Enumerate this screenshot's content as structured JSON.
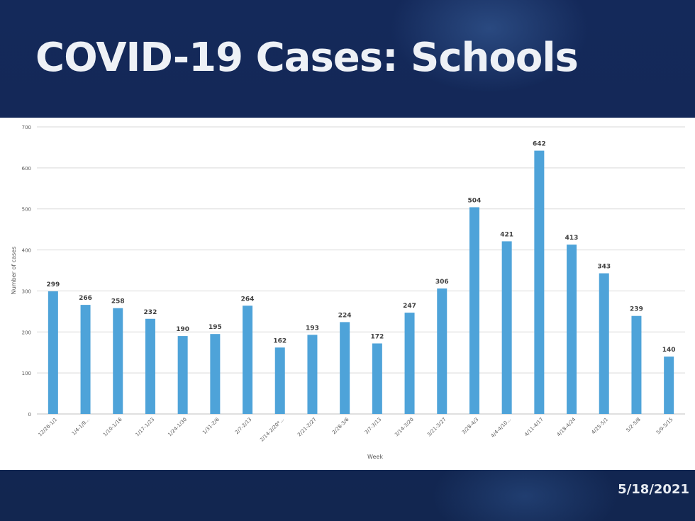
{
  "slide": {
    "title": "COVID-19 Cases: Schools",
    "date": "5/18/2021"
  },
  "colors": {
    "background": "#132a52",
    "bar": "#4ea3d9",
    "title": "#eef1f6"
  },
  "chart_data": {
    "type": "bar",
    "xlabel": "Week",
    "ylabel": "Number of cases",
    "ylim": [
      0,
      700
    ],
    "yticks": [
      0,
      100,
      200,
      300,
      400,
      500,
      600,
      700
    ],
    "grid": true,
    "categories": [
      "12/26-1/1",
      "1/4-1/9...",
      "1/10-1/16",
      "1/17-1/23",
      "1/24-1/30",
      "1/31-2/6",
      "2/7-2/13",
      "2/14-2/20*...",
      "2/21-2/27",
      "2/28-3/6",
      "3/7-3/13",
      "3/14-3/20",
      "3/21-3/27",
      "3/28-4/3",
      "4/4-4/10...",
      "4/11-4/17",
      "4/18-4/24",
      "4/25-5/1",
      "5/2-5/8",
      "5/9-5/15"
    ],
    "values": [
      299,
      266,
      258,
      232,
      190,
      195,
      264,
      162,
      193,
      224,
      172,
      247,
      306,
      504,
      421,
      642,
      413,
      343,
      239,
      140
    ]
  }
}
